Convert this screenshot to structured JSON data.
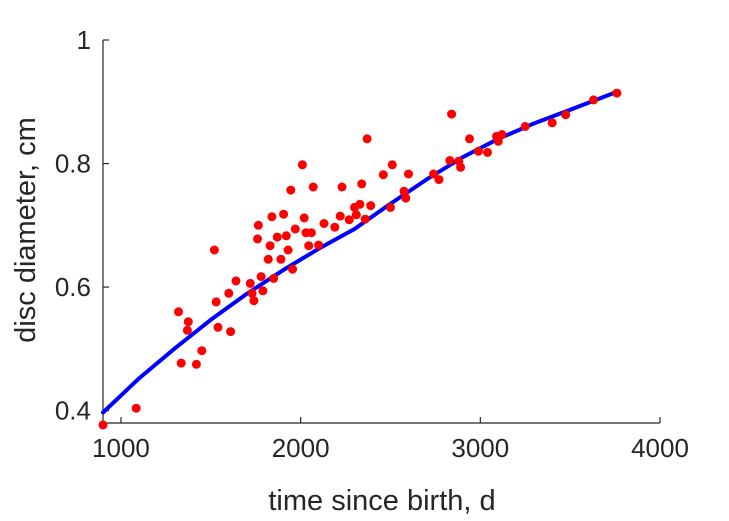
{
  "chart_data": {
    "type": "scatter",
    "title": "",
    "xlabel": "time since birth, d",
    "ylabel": "disc diameter, cm",
    "xlim": [
      900,
      4000
    ],
    "ylim": [
      0.38,
      1.0
    ],
    "xticks": [
      1000,
      2000,
      3000,
      4000
    ],
    "xtick_labels": [
      "1000",
      "2000",
      "3000",
      "4000"
    ],
    "yticks": [
      0.4,
      0.6,
      0.8,
      1.0
    ],
    "ytick_labels": [
      "0.4",
      "0.6",
      "0.8",
      "1"
    ],
    "grid": false,
    "colors": {
      "points": "#ff0000",
      "fit": "#0000ff",
      "axis": "#262626"
    },
    "series": [
      {
        "kind": "points",
        "points": [
          [
            900,
            0.377
          ],
          [
            1085,
            0.404
          ],
          [
            1320,
            0.56
          ],
          [
            1335,
            0.477
          ],
          [
            1370,
            0.53
          ],
          [
            1375,
            0.544
          ],
          [
            1420,
            0.475
          ],
          [
            1450,
            0.497
          ],
          [
            1520,
            0.66
          ],
          [
            1530,
            0.576
          ],
          [
            1540,
            0.535
          ],
          [
            1600,
            0.59
          ],
          [
            1610,
            0.528
          ],
          [
            1640,
            0.61
          ],
          [
            1720,
            0.606
          ],
          [
            1730,
            0.59
          ],
          [
            1740,
            0.578
          ],
          [
            1760,
            0.678
          ],
          [
            1765,
            0.7
          ],
          [
            1780,
            0.617
          ],
          [
            1790,
            0.594
          ],
          [
            1820,
            0.645
          ],
          [
            1830,
            0.667
          ],
          [
            1840,
            0.714
          ],
          [
            1850,
            0.614
          ],
          [
            1870,
            0.681
          ],
          [
            1890,
            0.645
          ],
          [
            1905,
            0.718
          ],
          [
            1920,
            0.683
          ],
          [
            1930,
            0.66
          ],
          [
            1945,
            0.757
          ],
          [
            1955,
            0.629
          ],
          [
            1970,
            0.694
          ],
          [
            2010,
            0.798
          ],
          [
            2020,
            0.712
          ],
          [
            2030,
            0.688
          ],
          [
            2045,
            0.667
          ],
          [
            2060,
            0.688
          ],
          [
            2070,
            0.762
          ],
          [
            2100,
            0.668
          ],
          [
            2130,
            0.703
          ],
          [
            2190,
            0.697
          ],
          [
            2220,
            0.715
          ],
          [
            2230,
            0.762
          ],
          [
            2270,
            0.709
          ],
          [
            2300,
            0.729
          ],
          [
            2310,
            0.717
          ],
          [
            2330,
            0.734
          ],
          [
            2340,
            0.767
          ],
          [
            2360,
            0.71
          ],
          [
            2370,
            0.84
          ],
          [
            2390,
            0.732
          ],
          [
            2460,
            0.782
          ],
          [
            2500,
            0.729
          ],
          [
            2510,
            0.798
          ],
          [
            2575,
            0.755
          ],
          [
            2585,
            0.744
          ],
          [
            2600,
            0.783
          ],
          [
            2740,
            0.783
          ],
          [
            2770,
            0.774
          ],
          [
            2830,
            0.805
          ],
          [
            2840,
            0.88
          ],
          [
            2880,
            0.804
          ],
          [
            2890,
            0.794
          ],
          [
            2940,
            0.84
          ],
          [
            2990,
            0.82
          ],
          [
            3040,
            0.818
          ],
          [
            3090,
            0.844
          ],
          [
            3100,
            0.836
          ],
          [
            3120,
            0.847
          ],
          [
            3250,
            0.86
          ],
          [
            3400,
            0.866
          ],
          [
            3475,
            0.879
          ],
          [
            3630,
            0.903
          ],
          [
            3760,
            0.914
          ]
        ]
      },
      {
        "kind": "fit-line",
        "points": [
          [
            900,
            0.397
          ],
          [
            1100,
            0.452
          ],
          [
            1300,
            0.501
          ],
          [
            1500,
            0.547
          ],
          [
            1700,
            0.589
          ],
          [
            1900,
            0.627
          ],
          [
            2100,
            0.662
          ],
          [
            2300,
            0.694
          ],
          [
            2500,
            0.735
          ],
          [
            2700,
            0.774
          ],
          [
            2900,
            0.81
          ],
          [
            3100,
            0.84
          ],
          [
            3300,
            0.865
          ],
          [
            3500,
            0.887
          ],
          [
            3760,
            0.916
          ]
        ]
      }
    ]
  }
}
